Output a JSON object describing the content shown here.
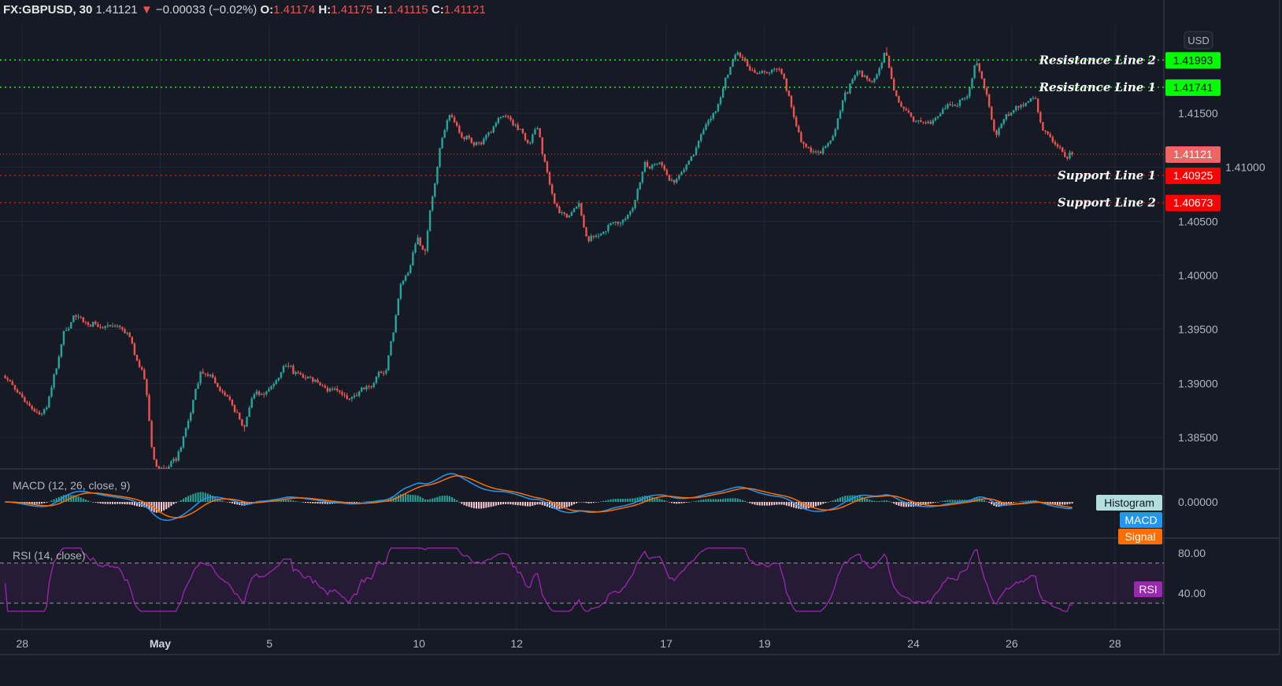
{
  "header": {
    "symbol": "FX:GBPUSD, 30",
    "last": "1.41121",
    "change": "−0.00033 (−0.02%)",
    "o_label": "O:",
    "o": "1.41174",
    "h_label": "H:",
    "h": "1.41175",
    "l_label": "L:",
    "l": "1.41115",
    "c_label": "C:",
    "c": "1.41121",
    "direction_icon": "triangle-down"
  },
  "currency_button": "USD",
  "colors": {
    "background": "#161a25",
    "up": "#26a69a",
    "down": "#ef5350",
    "resistance": "#00ff00",
    "support": "#ff0000",
    "macd": "#2196f3",
    "signal": "#ff6d00",
    "rsi": "#9c27b0"
  },
  "chart_data": {
    "type": "candlestick",
    "timeframe": "30",
    "price_ticks": [
      "1.38500",
      "1.39000",
      "1.39500",
      "1.40000",
      "1.40500",
      "1.41000",
      "1.41500"
    ],
    "price_tick_values": [
      1.385,
      1.39,
      1.395,
      1.4,
      1.405,
      1.41,
      1.415
    ],
    "ylim": [
      1.3795,
      1.4245
    ],
    "x_ticks": [
      {
        "label": "28",
        "bar": 30
      },
      {
        "label": "May",
        "bar": 256
      },
      {
        "label": "5",
        "bar": 435
      },
      {
        "label": "10",
        "bar": 680
      },
      {
        "label": "12",
        "bar": 840
      },
      {
        "label": "17",
        "bar": 1085
      },
      {
        "label": "19",
        "bar": 1246
      },
      {
        "label": "24",
        "bar": 1490
      },
      {
        "label": "26",
        "bar": 1651
      },
      {
        "label": "28",
        "bar": 1820
      }
    ],
    "price_path": [
      [
        0,
        1.3909
      ],
      [
        32,
        1.3883
      ],
      [
        58,
        1.3873
      ],
      [
        71,
        1.3876
      ],
      [
        97,
        1.3942
      ],
      [
        116,
        1.3964
      ],
      [
        135,
        1.3956
      ],
      [
        161,
        1.3949
      ],
      [
        194,
        1.3953
      ],
      [
        213,
        1.3934
      ],
      [
        232,
        1.3905
      ],
      [
        245,
        1.3833
      ],
      [
        264,
        1.3818
      ],
      [
        284,
        1.3825
      ],
      [
        303,
        1.3862
      ],
      [
        323,
        1.3913
      ],
      [
        342,
        1.3905
      ],
      [
        368,
        1.3883
      ],
      [
        393,
        1.3862
      ],
      [
        413,
        1.3891
      ],
      [
        439,
        1.3898
      ],
      [
        464,
        1.3913
      ],
      [
        490,
        1.3905
      ],
      [
        522,
        1.3902
      ],
      [
        548,
        1.3891
      ],
      [
        568,
        1.3883
      ],
      [
        600,
        1.3898
      ],
      [
        626,
        1.3913
      ],
      [
        639,
        1.3949
      ],
      [
        651,
        1.3993
      ],
      [
        664,
        1.4
      ],
      [
        677,
        1.4036
      ],
      [
        690,
        1.4022
      ],
      [
        703,
        1.4073
      ],
      [
        716,
        1.4124
      ],
      [
        729,
        1.4146
      ],
      [
        755,
        1.4124
      ],
      [
        780,
        1.4124
      ],
      [
        800,
        1.4138
      ],
      [
        819,
        1.4153
      ],
      [
        839,
        1.4138
      ],
      [
        858,
        1.4124
      ],
      [
        877,
        1.4138
      ],
      [
        890,
        1.4095
      ],
      [
        903,
        1.4066
      ],
      [
        922,
        1.4055
      ],
      [
        942,
        1.4066
      ],
      [
        955,
        1.4036
      ],
      [
        974,
        1.4036
      ],
      [
        993,
        1.4044
      ],
      [
        1013,
        1.4047
      ],
      [
        1032,
        1.4066
      ],
      [
        1051,
        1.4102
      ],
      [
        1077,
        1.4098
      ],
      [
        1103,
        1.4087
      ],
      [
        1129,
        1.4109
      ],
      [
        1148,
        1.4138
      ],
      [
        1167,
        1.4153
      ],
      [
        1180,
        1.4175
      ],
      [
        1200,
        1.4204
      ],
      [
        1219,
        1.4193
      ],
      [
        1245,
        1.4186
      ],
      [
        1271,
        1.4189
      ],
      [
        1290,
        1.416
      ],
      [
        1309,
        1.412
      ],
      [
        1335,
        1.4113
      ],
      [
        1361,
        1.4131
      ],
      [
        1380,
        1.4167
      ],
      [
        1400,
        1.4186
      ],
      [
        1425,
        1.4182
      ],
      [
        1445,
        1.4211
      ],
      [
        1458,
        1.4175
      ],
      [
        1477,
        1.4149
      ],
      [
        1503,
        1.4142
      ],
      [
        1529,
        1.4146
      ],
      [
        1554,
        1.4157
      ],
      [
        1580,
        1.4167
      ],
      [
        1593,
        1.4197
      ],
      [
        1613,
        1.416
      ],
      [
        1625,
        1.4127
      ],
      [
        1645,
        1.4149
      ],
      [
        1671,
        1.4153
      ],
      [
        1690,
        1.4164
      ],
      [
        1703,
        1.4135
      ],
      [
        1722,
        1.412
      ],
      [
        1742,
        1.4106
      ],
      [
        1748,
        1.41121
      ]
    ],
    "last_price": {
      "value": 1.41121,
      "label": "1.41121"
    },
    "levels": [
      {
        "name": "Resistance Line 2",
        "value": 1.41993,
        "label": "1.41993",
        "kind": "resistance"
      },
      {
        "name": "Resistance Line 1",
        "value": 1.41741,
        "label": "1.41741",
        "kind": "resistance"
      },
      {
        "name": "Support Line 1",
        "value": 1.40925,
        "label": "1.40925",
        "kind": "support"
      },
      {
        "name": "Support Line 2",
        "value": 1.40673,
        "label": "1.40673",
        "kind": "support"
      }
    ],
    "macd": {
      "title": "MACD (12, 26, close, 9)",
      "zero_label": "0.00000",
      "legend": [
        "Histogram",
        "MACD",
        "Signal"
      ]
    },
    "rsi": {
      "title": "RSI (14, close)",
      "ticks": [
        {
          "label": "80.00",
          "value": 80
        },
        {
          "label": "40.00",
          "value": 40
        }
      ],
      "bands": [
        30,
        70
      ],
      "legend": "RSI"
    }
  }
}
